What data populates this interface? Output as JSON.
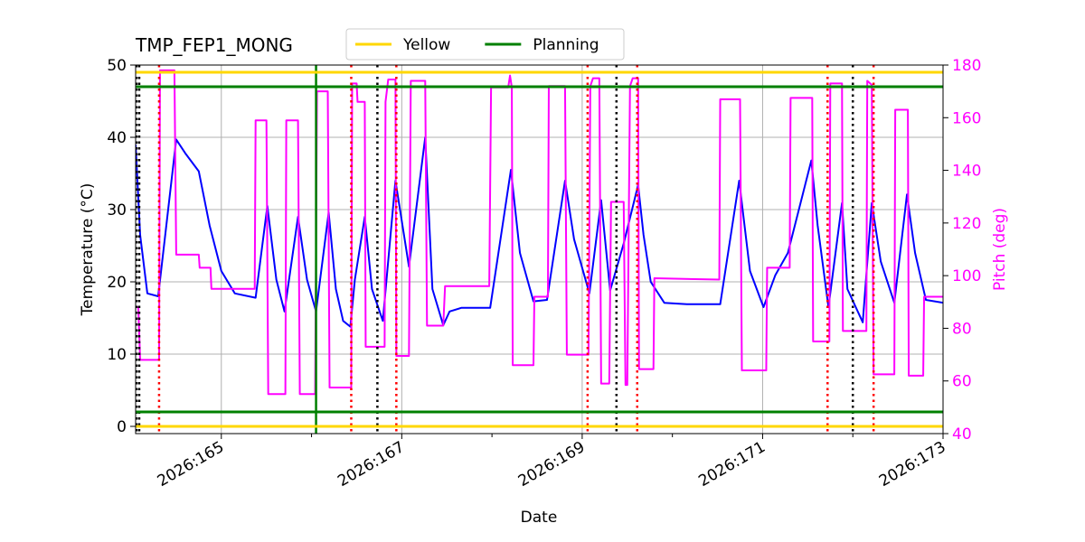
{
  "chart_data": {
    "type": "line",
    "title": "TMP_FEP1_MONG",
    "xlabel": "Date",
    "ylabel": "Temperature (°C)",
    "y2label": "Pitch (deg)",
    "y2color": "#ff00ff",
    "xlim": [
      164.05,
      173.0
    ],
    "xticks": [
      {
        "value": 165,
        "label": "2026:165"
      },
      {
        "value": 167,
        "label": "2026:167"
      },
      {
        "value": 169,
        "label": "2026:169"
      },
      {
        "value": 171,
        "label": "2026:171"
      },
      {
        "value": 173,
        "label": "2026:173"
      }
    ],
    "xminorticks": [
      166,
      168,
      170,
      172
    ],
    "ylim": [
      -1,
      50
    ],
    "yticks": [
      0,
      10,
      20,
      30,
      40,
      50
    ],
    "y2lim": [
      40,
      180
    ],
    "y2ticks": [
      40,
      60,
      80,
      100,
      120,
      140,
      160,
      180
    ],
    "grid": true,
    "legend": "upper center",
    "hlines": [
      {
        "name": "Yellow",
        "color": "#ffd700",
        "values": [
          49,
          0
        ]
      },
      {
        "name": "Planning",
        "color": "#008000",
        "values": [
          47,
          2
        ]
      }
    ],
    "vlines": [
      {
        "color": "#000000",
        "style": "dotted",
        "x": [
          164.06,
          164.09,
          166.73,
          169.38,
          172.0
        ]
      },
      {
        "color": "#ff0000",
        "style": "dotted",
        "x": [
          164.31,
          166.44,
          166.94,
          169.06,
          169.61,
          171.72,
          172.23
        ]
      },
      {
        "color": "#008000",
        "style": "solid",
        "x": [
          166.05
        ]
      }
    ],
    "series": [
      {
        "color": "#0000ff",
        "x": [
          164.05,
          164.1,
          164.18,
          164.3,
          164.5,
          164.6,
          164.75,
          164.87,
          165.0,
          165.15,
          165.38,
          165.51,
          165.61,
          165.7,
          165.85,
          165.95,
          166.05,
          166.19,
          166.27,
          166.35,
          166.43,
          166.48,
          166.59,
          166.67,
          166.79,
          166.93,
          167.08,
          167.26,
          167.34,
          167.46,
          167.53,
          167.66,
          167.98,
          168.21,
          168.31,
          168.46,
          168.61,
          168.81,
          168.91,
          169.08,
          169.21,
          169.31,
          169.46,
          169.62,
          169.68,
          169.76,
          169.91,
          170.16,
          170.53,
          170.74,
          170.86,
          171.01,
          171.14,
          171.28,
          171.54,
          171.61,
          171.73,
          171.88,
          171.94,
          172.11,
          172.21,
          172.31,
          172.46,
          172.6,
          172.69,
          172.81,
          173.0
        ],
        "values": [
          39,
          26.5,
          18.4,
          18,
          39.7,
          37.8,
          35.3,
          27.8,
          21.5,
          18.4,
          17.8,
          30.5,
          20.3,
          15.9,
          29,
          20.3,
          15.9,
          29.6,
          19,
          14.6,
          13.8,
          20.3,
          29,
          19,
          14.6,
          34,
          22.1,
          40,
          19,
          14,
          15.9,
          16.4,
          16.4,
          35.5,
          24,
          17.3,
          17.5,
          34,
          25.9,
          18.4,
          31.3,
          18.8,
          25.3,
          33.4,
          26.5,
          20,
          17.1,
          16.9,
          16.9,
          34,
          21.5,
          16.5,
          20.9,
          24,
          36.8,
          27.8,
          16.5,
          30.9,
          19,
          14.4,
          30.9,
          22.8,
          17.1,
          32.1,
          24,
          17.5,
          17.1
        ]
      },
      {
        "color": "#ff00ff",
        "axis": "y2",
        "x": [
          164.05,
          164.08,
          164.1,
          164.31,
          164.32,
          164.48,
          164.5,
          164.75,
          164.76,
          164.88,
          164.89,
          165.37,
          165.38,
          165.5,
          165.52,
          165.71,
          165.72,
          165.85,
          165.87,
          166.04,
          166.06,
          166.18,
          166.2,
          166.44,
          166.45,
          166.5,
          166.51,
          166.59,
          166.6,
          166.81,
          166.82,
          166.85,
          166.93,
          166.94,
          167.08,
          167.1,
          167.26,
          167.28,
          167.46,
          167.48,
          167.97,
          167.99,
          168.18,
          168.2,
          168.22,
          168.23,
          168.46,
          168.47,
          168.62,
          168.63,
          168.81,
          168.83,
          169.07,
          169.09,
          169.12,
          169.19,
          169.21,
          169.3,
          169.32,
          169.46,
          169.48,
          169.5,
          169.53,
          169.56,
          169.62,
          169.63,
          169.79,
          169.8,
          170.52,
          170.53,
          170.75,
          170.77,
          171.04,
          171.05,
          171.3,
          171.31,
          171.55,
          171.56,
          171.74,
          171.75,
          171.88,
          171.89,
          172.15,
          172.16,
          172.21,
          172.23,
          172.46,
          172.47,
          172.61,
          172.62,
          172.78,
          172.79,
          173.0
        ],
        "values": [
          88,
          88,
          68,
          68,
          178,
          178,
          108,
          108,
          103,
          103,
          95,
          95,
          159,
          159,
          55,
          55,
          159,
          159,
          55,
          55,
          170,
          170,
          57.5,
          57.5,
          173,
          173,
          166,
          166,
          73,
          73,
          166,
          174.5,
          174.5,
          69.5,
          69.5,
          174,
          174,
          81,
          81,
          96,
          96,
          171.5,
          171.5,
          176,
          171.5,
          66,
          66,
          92,
          92,
          172,
          172,
          70,
          70,
          172,
          175,
          175,
          59,
          59,
          128,
          128,
          58.5,
          58.5,
          172,
          175,
          175,
          64.5,
          64.5,
          99,
          98.5,
          167,
          167,
          64,
          64,
          103,
          103,
          167.5,
          167.5,
          75,
          75,
          173,
          173,
          79,
          79,
          174,
          172.5,
          62.5,
          62.5,
          163,
          163,
          62,
          62,
          92,
          92
        ]
      }
    ]
  }
}
